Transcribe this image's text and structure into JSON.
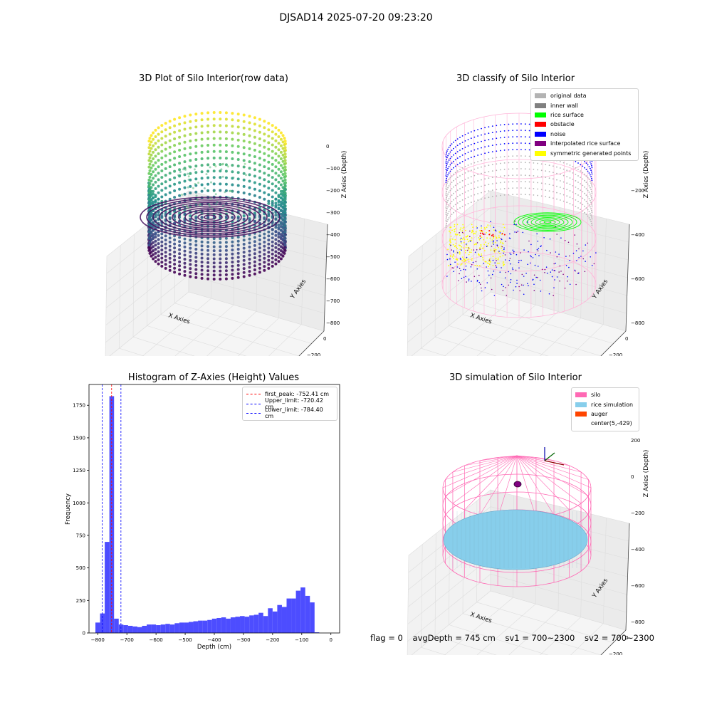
{
  "page": {
    "suptitle": "DJSAD14 2025-07-20 09:23:20",
    "status": {
      "flag": "flag = 0",
      "avg_depth": "avgDepth = 745 cm",
      "sv1": "sv1 = 700~2300",
      "sv2": "sv2 = 700~2300"
    }
  },
  "colors": {
    "original_data": "#b3b3b3",
    "inner_wall": "#808080",
    "rice_surface": "#00ff00",
    "obstacle": "#ff0000",
    "noise": "#0000ff",
    "interpolated_rice_surface": "#800080",
    "symmetric_generated_points": "#ffff00",
    "silo": "#ff69b4",
    "rice_simulation": "#87ceeb",
    "auger": "#ff4500",
    "hist_bar": "#4d4dff"
  },
  "chart_data": [
    {
      "type": "scatter3d",
      "title": "3D Plot of Silo Interior(row data)",
      "xlabel": "X Axies",
      "ylabel": "Y Axies",
      "zlabel": "Z Axies (Depth)",
      "x_ticks": [
        "−400",
        "−200",
        "0",
        "200",
        "400"
      ],
      "y_ticks": [
        "0",
        "−200",
        "−400",
        "−600",
        "−800"
      ],
      "z_ticks": [
        "0",
        "−100",
        "−200",
        "−300",
        "−400",
        "−500",
        "−600",
        "−700",
        "−800"
      ],
      "colormap": "viridis"
    },
    {
      "type": "scatter3d",
      "title": "3D classify of Silo Interior",
      "xlabel": "X Axies",
      "ylabel": "Y Axies",
      "zlabel": "Z Axies (Depth)",
      "x_ticks": [
        "−400",
        "−200",
        "0",
        "200",
        "400"
      ],
      "y_ticks": [
        "0",
        "−200",
        "−400",
        "−600",
        "−800"
      ],
      "z_ticks": [
        "0",
        "−200",
        "−400",
        "−600",
        "−800"
      ],
      "legend": [
        {
          "label": "original data",
          "color": "#b3b3b3"
        },
        {
          "label": "inner wall",
          "color": "#808080"
        },
        {
          "label": "rice surface",
          "color": "#00ff00"
        },
        {
          "label": "obstacle",
          "color": "#ff0000"
        },
        {
          "label": "noise",
          "color": "#0000ff"
        },
        {
          "label": "interpolated rice surface",
          "color": "#800080"
        },
        {
          "label": "symmetric generated points",
          "color": "#ffff00"
        }
      ],
      "legend_position": "top-right"
    },
    {
      "type": "bar",
      "title": "Histogram of Z-Axies (Height) Values",
      "xlabel": "Depth (cm)",
      "ylabel": "Frequency",
      "xlim": [
        -830,
        30
      ],
      "ylim": [
        0,
        1910
      ],
      "x_ticks": [
        -800,
        -700,
        -600,
        -500,
        -400,
        -300,
        -200,
        -100,
        0
      ],
      "y_ticks": [
        0,
        250,
        500,
        750,
        1000,
        1250,
        1500,
        1750
      ],
      "bin_width": 16,
      "bin_edges_start": -808,
      "values": [
        80,
        150,
        700,
        1820,
        110,
        65,
        60,
        55,
        50,
        45,
        55,
        65,
        65,
        60,
        65,
        70,
        65,
        75,
        80,
        80,
        85,
        90,
        95,
        95,
        100,
        110,
        115,
        120,
        110,
        120,
        125,
        130,
        125,
        135,
        140,
        155,
        130,
        190,
        165,
        215,
        200,
        265,
        265,
        325,
        350,
        285,
        235,
        5
      ],
      "vlines": [
        {
          "label": "first_peak: -752.41 cm",
          "x": -752.41,
          "color": "#ff0000"
        },
        {
          "label": "Upper_limit: -720.42 cm",
          "x": -720.42,
          "color": "#0000ff"
        },
        {
          "label": "Lower_limit: -784.40 cm",
          "x": -784.4,
          "color": "#0000ff"
        }
      ],
      "legend_position": "top-right"
    },
    {
      "type": "surface3d",
      "title": "3D simulation of Silo Interior",
      "xlabel": "X Axies",
      "ylabel": "Y Axies",
      "zlabel": "Z Axies (Depth)",
      "x_ticks": [
        "−400",
        "−200",
        "0",
        "200",
        "400"
      ],
      "y_ticks": [
        "0",
        "−200",
        "−400",
        "−600",
        "−800"
      ],
      "z_ticks": [
        "200",
        "0",
        "−200",
        "−400",
        "−600",
        "−800"
      ],
      "legend": [
        {
          "label": "silo",
          "color": "#ff69b4"
        },
        {
          "label": "rice simulation",
          "color": "#87ceeb"
        },
        {
          "label": "auger",
          "color": "#ff4500"
        },
        {
          "label": "center(5,-429)",
          "color": ""
        }
      ],
      "legend_position": "top-right"
    }
  ]
}
